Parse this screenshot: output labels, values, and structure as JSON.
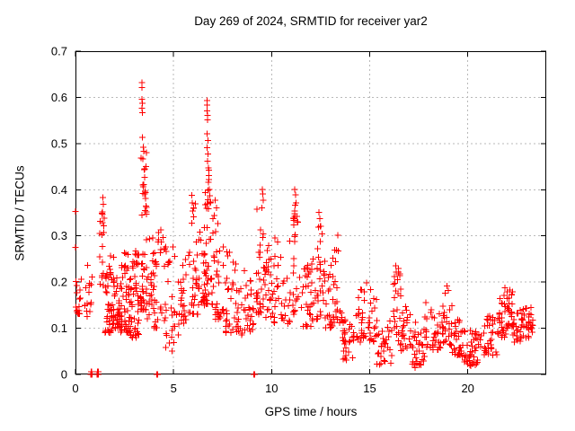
{
  "title": "Day 269 of 2024, SRMTID for receiver yar2",
  "chart_data": {
    "type": "scatter",
    "title": "Day 269 of 2024, SRMTID for receiver yar2",
    "xlabel": "GPS time / hours",
    "ylabel": "SRMTID / TECUs",
    "xlim": [
      0,
      24
    ],
    "ylim": [
      0,
      0.7
    ],
    "xticks": [
      0,
      5,
      10,
      15,
      20
    ],
    "xtick_labels": [
      "0",
      "5",
      "10",
      "15",
      "20"
    ],
    "yticks": [
      0,
      0.1,
      0.2,
      0.3,
      0.4,
      0.5,
      0.6,
      0.7
    ],
    "ytick_labels": [
      "0",
      "0.1",
      "0.2",
      "0.3",
      "0.4",
      "0.5",
      "0.6",
      "0.7"
    ],
    "grid": true,
    "legend": "none",
    "marker": "plus",
    "marker_color": "#ff0000",
    "grid_color": "#b9b9b9",
    "border_color": "#000000",
    "points_format": "[gps_hour, srmtid_tecus]",
    "notable_points": [
      [
        0,
        0.353
      ],
      [
        0,
        0.275
      ],
      [
        0.02,
        0.201
      ],
      [
        0.02,
        0.146
      ],
      [
        1.4,
        0.383
      ],
      [
        1.43,
        0.368
      ],
      [
        1.38,
        0.352
      ],
      [
        1.46,
        0.338
      ],
      [
        3.38,
        0.632
      ],
      [
        3.4,
        0.621
      ],
      [
        3.38,
        0.596
      ],
      [
        3.41,
        0.587
      ],
      [
        3.39,
        0.577
      ],
      [
        3.42,
        0.567
      ],
      [
        3.42,
        0.513
      ],
      [
        3.45,
        0.492
      ],
      [
        3.47,
        0.483
      ],
      [
        3.44,
        0.467
      ],
      [
        3.5,
        0.443
      ],
      [
        3.52,
        0.427
      ],
      [
        3.48,
        0.411
      ],
      [
        3.55,
        0.397
      ],
      [
        3.58,
        0.381
      ],
      [
        3.6,
        0.365
      ],
      [
        3.62,
        0.352
      ],
      [
        5.92,
        0.388
      ],
      [
        5.95,
        0.371
      ],
      [
        5.98,
        0.354
      ],
      [
        6.7,
        0.593
      ],
      [
        6.72,
        0.583
      ],
      [
        6.71,
        0.571
      ],
      [
        6.74,
        0.561
      ],
      [
        6.73,
        0.551
      ],
      [
        6.7,
        0.521
      ],
      [
        6.75,
        0.507
      ],
      [
        6.72,
        0.491
      ],
      [
        6.76,
        0.477
      ],
      [
        6.74,
        0.462
      ],
      [
        6.78,
        0.447
      ],
      [
        6.8,
        0.431
      ],
      [
        6.77,
        0.416
      ],
      [
        6.82,
        0.401
      ],
      [
        6.85,
        0.387
      ],
      [
        6.88,
        0.371
      ],
      [
        7.12,
        0.377
      ],
      [
        7.18,
        0.361
      ],
      [
        7.08,
        0.344
      ],
      [
        9.52,
        0.401
      ],
      [
        9.55,
        0.391
      ],
      [
        9.57,
        0.377
      ],
      [
        9.5,
        0.361
      ],
      [
        11.18,
        0.401
      ],
      [
        11.22,
        0.389
      ],
      [
        11.25,
        0.371
      ],
      [
        11.32,
        0.331
      ],
      [
        12.42,
        0.351
      ],
      [
        12.46,
        0.337
      ],
      [
        12.5,
        0.321
      ],
      [
        13.38,
        0.301
      ],
      [
        16.32,
        0.235
      ],
      [
        16.35,
        0.222
      ],
      [
        17.32,
        0.015
      ],
      [
        20.15,
        0.018
      ],
      [
        20.25,
        0.022
      ],
      [
        18.95,
        0.192
      ],
      [
        19.0,
        0.182
      ],
      [
        21.9,
        0.188
      ],
      [
        22.0,
        0.179
      ],
      [
        21.85,
        0.171
      ],
      [
        0.78,
        0
      ],
      [
        0.81,
        0
      ],
      [
        0.84,
        0
      ],
      [
        0.8,
        0.006
      ],
      [
        0.83,
        0.006
      ],
      [
        1.11,
        0
      ],
      [
        1.14,
        0
      ],
      [
        1.17,
        0
      ],
      [
        1.12,
        0.006
      ],
      [
        1.16,
        0.006
      ],
      [
        4.15,
        0
      ],
      [
        4.19,
        0
      ],
      [
        9.1,
        0
      ],
      [
        9.14,
        0
      ]
    ],
    "bands_format": "[hour_start, hour_end, point_count, value_min, value_max, skew_toward_min]",
    "scatter_bands": [
      [
        0.05,
        0.35,
        14,
        0.12,
        0.215,
        1.3
      ],
      [
        0.45,
        0.85,
        16,
        0.125,
        0.265,
        1.3
      ],
      [
        1.2,
        1.5,
        16,
        0.19,
        0.37,
        1.2
      ],
      [
        1.5,
        2.0,
        55,
        0.09,
        0.26,
        1.5
      ],
      [
        2.0,
        2.3,
        28,
        0.1,
        0.225,
        1.4
      ],
      [
        2.3,
        2.8,
        50,
        0.09,
        0.27,
        1.5
      ],
      [
        2.8,
        3.25,
        48,
        0.08,
        0.28,
        1.5
      ],
      [
        3.3,
        3.65,
        46,
        0.14,
        0.5,
        1.8
      ],
      [
        3.65,
        4.0,
        20,
        0.12,
        0.31,
        1.5
      ],
      [
        4.0,
        4.6,
        34,
        0.1,
        0.33,
        1.5
      ],
      [
        4.6,
        5.3,
        30,
        0.05,
        0.28,
        1.5
      ],
      [
        5.3,
        5.75,
        22,
        0.11,
        0.25,
        1.4
      ],
      [
        5.75,
        6.15,
        24,
        0.13,
        0.37,
        1.6
      ],
      [
        6.15,
        6.55,
        22,
        0.13,
        0.31,
        1.5
      ],
      [
        6.55,
        7.0,
        48,
        0.15,
        0.46,
        1.7
      ],
      [
        7.0,
        7.6,
        34,
        0.12,
        0.36,
        1.6
      ],
      [
        7.6,
        8.45,
        40,
        0.09,
        0.27,
        1.5
      ],
      [
        8.45,
        9.1,
        28,
        0.08,
        0.23,
        1.4
      ],
      [
        9.2,
        9.7,
        34,
        0.13,
        0.37,
        1.6
      ],
      [
        9.7,
        10.1,
        22,
        0.12,
        0.28,
        1.4
      ],
      [
        10.1,
        11.05,
        34,
        0.11,
        0.3,
        1.5
      ],
      [
        11.05,
        11.45,
        28,
        0.13,
        0.37,
        1.6
      ],
      [
        11.45,
        12.25,
        36,
        0.1,
        0.26,
        1.5
      ],
      [
        12.25,
        12.65,
        24,
        0.12,
        0.33,
        1.5
      ],
      [
        12.65,
        13.15,
        26,
        0.1,
        0.27,
        1.4
      ],
      [
        13.15,
        13.6,
        20,
        0.11,
        0.3,
        1.5
      ],
      [
        13.6,
        14.25,
        30,
        0.03,
        0.13,
        1.2
      ],
      [
        14.3,
        14.9,
        26,
        0.07,
        0.21,
        1.4
      ],
      [
        14.9,
        15.35,
        20,
        0.07,
        0.19,
        1.4
      ],
      [
        15.35,
        16.15,
        32,
        0.02,
        0.12,
        1.2
      ],
      [
        16.2,
        16.6,
        24,
        0.06,
        0.23,
        1.4
      ],
      [
        16.6,
        17.1,
        24,
        0.05,
        0.15,
        1.3
      ],
      [
        17.1,
        17.8,
        32,
        0.02,
        0.12,
        1.2
      ],
      [
        17.8,
        18.7,
        36,
        0.05,
        0.16,
        1.4
      ],
      [
        18.7,
        19.2,
        28,
        0.06,
        0.18,
        1.4
      ],
      [
        19.2,
        19.7,
        26,
        0.04,
        0.12,
        1.3
      ],
      [
        19.7,
        20.8,
        46,
        0.02,
        0.1,
        1.3
      ],
      [
        20.8,
        21.5,
        32,
        0.04,
        0.13,
        1.3
      ],
      [
        21.5,
        21.95,
        26,
        0.08,
        0.165,
        1.3
      ],
      [
        21.95,
        22.3,
        24,
        0.1,
        0.185,
        1.2
      ],
      [
        22.3,
        22.8,
        26,
        0.07,
        0.14,
        1.3
      ],
      [
        22.8,
        23.35,
        28,
        0.07,
        0.15,
        1.3
      ]
    ]
  }
}
